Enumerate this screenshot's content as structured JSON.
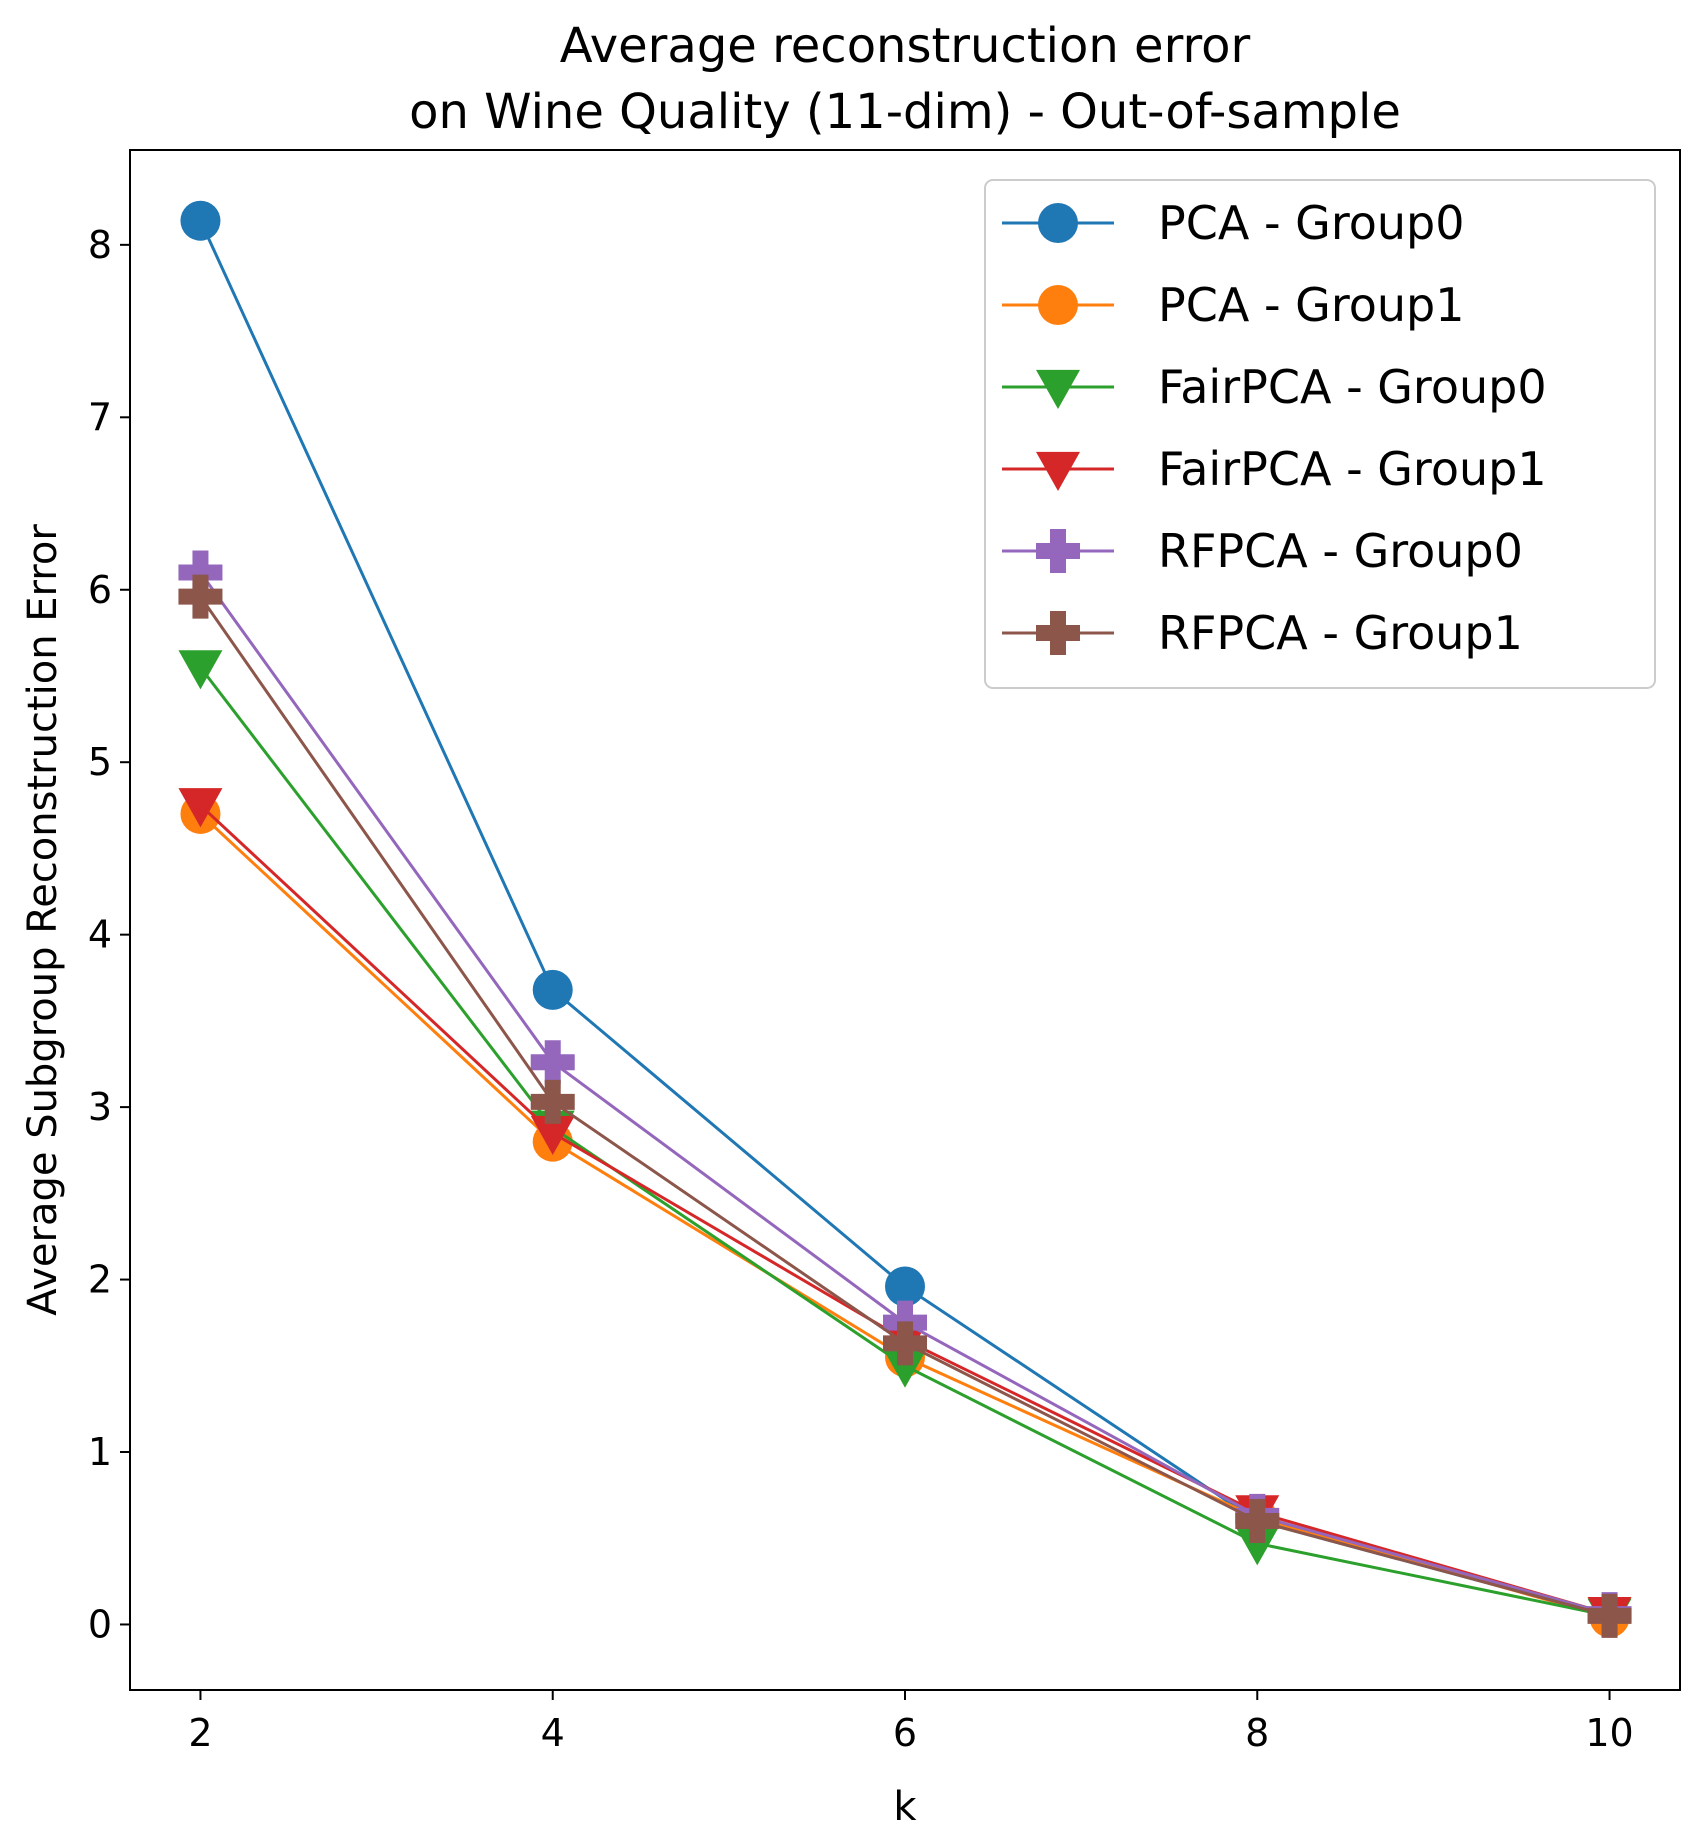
{
  "chart_data": {
    "type": "line",
    "title_lines": [
      "Average reconstruction error",
      "on Wine Quality (11-dim) - Out-of-sample"
    ],
    "xlabel": "k",
    "ylabel": "Average Subgroup Reconstruction Error",
    "x": [
      2,
      4,
      6,
      8,
      10
    ],
    "xticks": [
      2,
      4,
      6,
      8,
      10
    ],
    "yticks": [
      0,
      1,
      2,
      3,
      4,
      5,
      6,
      7,
      8
    ],
    "xlim": [
      1.6,
      10.4
    ],
    "ylim": [
      -0.38,
      8.55
    ],
    "grid": false,
    "legend_position": "top-right",
    "series": [
      {
        "name": "PCA - Group0",
        "marker": "circle",
        "color": "#1f77b4",
        "values": [
          8.14,
          3.68,
          1.96,
          0.6,
          0.05
        ]
      },
      {
        "name": "PCA - Group1",
        "marker": "circle",
        "color": "#ff7f0e",
        "values": [
          4.7,
          2.8,
          1.55,
          0.62,
          0.04
        ]
      },
      {
        "name": "FairPCA - Group0",
        "marker": "triangle-down",
        "color": "#2ca02c",
        "values": [
          5.55,
          2.88,
          1.5,
          0.47,
          0.05
        ]
      },
      {
        "name": "FairPCA - Group1",
        "marker": "triangle-down",
        "color": "#d62728",
        "values": [
          4.75,
          2.85,
          1.65,
          0.65,
          0.06
        ]
      },
      {
        "name": "RFPCA - Group0",
        "marker": "plus",
        "color": "#9467bd",
        "values": [
          6.1,
          3.26,
          1.75,
          0.63,
          0.06
        ]
      },
      {
        "name": "RFPCA - Group1",
        "marker": "plus",
        "color": "#8c564b",
        "values": [
          5.96,
          3.03,
          1.63,
          0.6,
          0.05
        ]
      }
    ]
  }
}
